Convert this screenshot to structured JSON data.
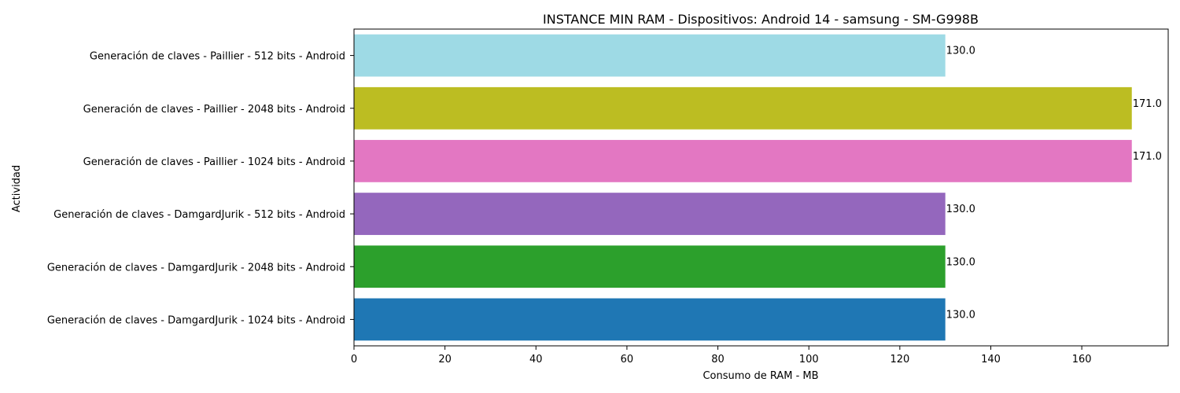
{
  "chart_data": {
    "type": "bar",
    "orientation": "horizontal",
    "title": "INSTANCE MIN RAM - Dispositivos: Android 14 - samsung - SM-G998B",
    "xlabel": "Consumo de RAM - MB",
    "ylabel": "Actividad",
    "xlim": [
      0,
      179
    ],
    "xticks": [
      0,
      20,
      40,
      60,
      80,
      100,
      120,
      140,
      160
    ],
    "grid": false,
    "categories": [
      "Generación de claves - DamgardJurik - 1024 bits - Android",
      "Generación de claves - DamgardJurik - 2048 bits - Android",
      "Generación de claves - DamgardJurik - 512 bits - Android",
      "Generación de claves - Paillier - 1024 bits - Android",
      "Generación de claves - Paillier - 2048 bits - Android",
      "Generación de claves - Paillier - 512 bits - Android"
    ],
    "values": [
      130.0,
      130.0,
      130.0,
      171.0,
      171.0,
      130.0
    ],
    "value_labels": [
      "130.0",
      "130.0",
      "130.0",
      "171.0",
      "171.0",
      "130.0"
    ],
    "colors": [
      "#1f77b4",
      "#2ca02c",
      "#9467bd",
      "#e377c2",
      "#bcbd22",
      "#9edae5"
    ]
  }
}
